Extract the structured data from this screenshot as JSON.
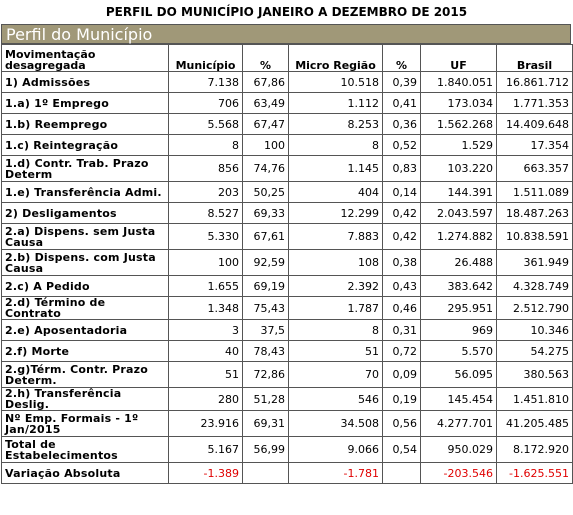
{
  "page": {
    "title": "PERFIL DO MUNICÍPIO JANEIRO A DEZEMBRO DE 2015",
    "banner": "Perfil do Município"
  },
  "table": {
    "headers": [
      "Movimentação desagregada",
      "Município",
      "%",
      "Micro Região",
      "%",
      "UF",
      "Brasil"
    ],
    "rows": [
      {
        "label": "1) Admissões",
        "municipio": "7.138",
        "pct1": "67,86",
        "micro": "10.518",
        "pct2": "0,39",
        "uf": "1.840.051",
        "brasil": "16.861.712"
      },
      {
        "label": "1.a) 1º Emprego",
        "municipio": "706",
        "pct1": "63,49",
        "micro": "1.112",
        "pct2": "0,41",
        "uf": "173.034",
        "brasil": "1.771.353"
      },
      {
        "label": "1.b) Reemprego",
        "municipio": "5.568",
        "pct1": "67,47",
        "micro": "8.253",
        "pct2": "0,36",
        "uf": "1.562.268",
        "brasil": "14.409.648"
      },
      {
        "label": "1.c) Reintegração",
        "municipio": "8",
        "pct1": "100",
        "micro": "8",
        "pct2": "0,52",
        "uf": "1.529",
        "brasil": "17.354"
      },
      {
        "label": "1.d) Contr. Trab. Prazo Determ",
        "municipio": "856",
        "pct1": "74,76",
        "micro": "1.145",
        "pct2": "0,83",
        "uf": "103.220",
        "brasil": "663.357"
      },
      {
        "label": "1.e) Transferência Admi.",
        "municipio": "203",
        "pct1": "50,25",
        "micro": "404",
        "pct2": "0,14",
        "uf": "144.391",
        "brasil": "1.511.089"
      },
      {
        "label": "2) Desligamentos",
        "municipio": "8.527",
        "pct1": "69,33",
        "micro": "12.299",
        "pct2": "0,42",
        "uf": "2.043.597",
        "brasil": "18.487.263"
      },
      {
        "label": "2.a) Dispens. sem Justa Causa",
        "municipio": "5.330",
        "pct1": "67,61",
        "micro": "7.883",
        "pct2": "0,42",
        "uf": "1.274.882",
        "brasil": "10.838.591"
      },
      {
        "label": "2.b) Dispens. com Justa Causa",
        "municipio": "100",
        "pct1": "92,59",
        "micro": "108",
        "pct2": "0,38",
        "uf": "26.488",
        "brasil": "361.949"
      },
      {
        "label": "2.c) A Pedido",
        "municipio": "1.655",
        "pct1": "69,19",
        "micro": "2.392",
        "pct2": "0,43",
        "uf": "383.642",
        "brasil": "4.328.749"
      },
      {
        "label": "2.d) Término de Contrato",
        "municipio": "1.348",
        "pct1": "75,43",
        "micro": "1.787",
        "pct2": "0,46",
        "uf": "295.951",
        "brasil": "2.512.790"
      },
      {
        "label": "2.e) Aposentadoria",
        "municipio": "3",
        "pct1": "37,5",
        "micro": "8",
        "pct2": "0,31",
        "uf": "969",
        "brasil": "10.346"
      },
      {
        "label": "2.f) Morte",
        "municipio": "40",
        "pct1": "78,43",
        "micro": "51",
        "pct2": "0,72",
        "uf": "5.570",
        "brasil": "54.275"
      },
      {
        "label": "2.g)Térm. Contr. Prazo Determ.",
        "municipio": "51",
        "pct1": "72,86",
        "micro": "70",
        "pct2": "0,09",
        "uf": "56.095",
        "brasil": "380.563"
      },
      {
        "label": "2.h) Transferência Deslig.",
        "municipio": "280",
        "pct1": "51,28",
        "micro": "546",
        "pct2": "0,19",
        "uf": "145.454",
        "brasil": "1.451.810"
      },
      {
        "label": "Nº Emp. Formais - 1º Jan/2015",
        "municipio": "23.916",
        "pct1": "69,31",
        "micro": "34.508",
        "pct2": "0,56",
        "uf": "4.277.701",
        "brasil": "41.205.485"
      },
      {
        "label": "Total de Estabelecimentos",
        "municipio": "5.167",
        "pct1": "56,99",
        "micro": "9.066",
        "pct2": "0,54",
        "uf": "950.029",
        "brasil": "8.172.920"
      },
      {
        "label": "Variação Absoluta",
        "municipio": "-1.389",
        "pct1": "",
        "micro": "-1.781",
        "pct2": "",
        "uf": "-203.546",
        "brasil": "-1.625.551"
      }
    ]
  },
  "colors": {
    "banner_bg": "#a09878",
    "negative": "#e00000"
  }
}
